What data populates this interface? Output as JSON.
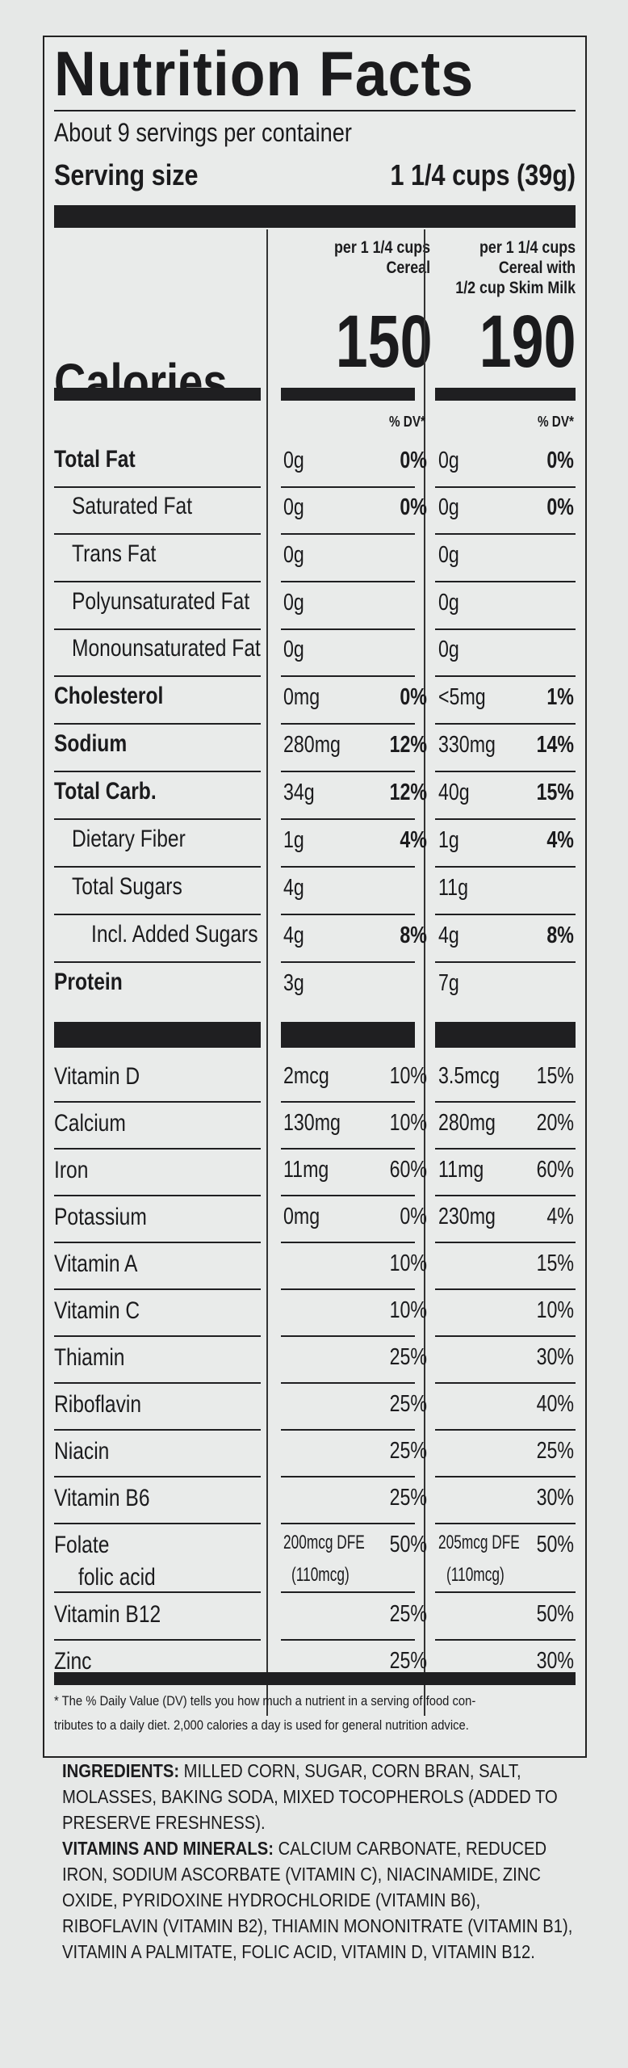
{
  "title": "Nutrition Facts",
  "servings": "About 9 servings per container",
  "serving_size_label": "Serving size",
  "serving_size_value": "1 1/4 cups (39g)",
  "col1_header": [
    "per 1 1/4 cups",
    "Cereal"
  ],
  "col2_header": [
    "per 1 1/4 cups",
    "Cereal with",
    "1/2 cup Skim Milk"
  ],
  "calories_label": "Calories",
  "calories_col1": "150",
  "calories_col2": "190",
  "dv_header": "% DV*",
  "nutrients": [
    {
      "name": "Total Fat",
      "bold": true,
      "a1": "0g",
      "p1": "0%",
      "a2": "0g",
      "p2": "0%",
      "pbold": true
    },
    {
      "name": "Saturated Fat",
      "indent": 1,
      "a1": "0g",
      "p1": "0%",
      "a2": "0g",
      "p2": "0%",
      "pbold": true
    },
    {
      "name": "Trans Fat",
      "indent": 1,
      "a1": "0g",
      "p1": "",
      "a2": "0g",
      "p2": ""
    },
    {
      "name": "Polyunsaturated Fat",
      "indent": 1,
      "a1": "0g",
      "p1": "",
      "a2": "0g",
      "p2": ""
    },
    {
      "name": "Monounsaturated Fat",
      "indent": 1,
      "a1": "0g",
      "p1": "",
      "a2": "0g",
      "p2": ""
    },
    {
      "name": "Cholesterol",
      "bold": true,
      "a1": "0mg",
      "p1": "0%",
      "a2": "<5mg",
      "p2": "1%",
      "pbold": true
    },
    {
      "name": "Sodium",
      "bold": true,
      "a1": "280mg",
      "p1": "12%",
      "a2": "330mg",
      "p2": "14%",
      "pbold": true
    },
    {
      "name": "Total Carb.",
      "bold": true,
      "a1": "34g",
      "p1": "12%",
      "a2": "40g",
      "p2": "15%",
      "pbold": true
    },
    {
      "name": "Dietary Fiber",
      "indent": 1,
      "a1": "1g",
      "p1": "4%",
      "a2": "1g",
      "p2": "4%",
      "pbold": true
    },
    {
      "name": "Total Sugars",
      "indent": 1,
      "a1": "4g",
      "p1": "",
      "a2": "11g",
      "p2": ""
    },
    {
      "name": "Incl. Added Sugars",
      "indent": 2,
      "a1": "4g",
      "p1": "8%",
      "a2": "4g",
      "p2": "8%",
      "pbold": true
    },
    {
      "name": "Protein",
      "bold": true,
      "a1": "3g",
      "p1": "",
      "a2": "7g",
      "p2": ""
    }
  ],
  "vitamins": [
    {
      "name": "Vitamin D",
      "a1": "2mcg",
      "p1": "10%",
      "a2": "3.5mcg",
      "p2": "15%"
    },
    {
      "name": "Calcium",
      "a1": "130mg",
      "p1": "10%",
      "a2": "280mg",
      "p2": "20%"
    },
    {
      "name": "Iron",
      "a1": "11mg",
      "p1": "60%",
      "a2": "11mg",
      "p2": "60%"
    },
    {
      "name": "Potassium",
      "a1": "0mg",
      "p1": "0%",
      "a2": "230mg",
      "p2": "4%"
    },
    {
      "name": "Vitamin A",
      "a1": "",
      "p1": "10%",
      "a2": "",
      "p2": "15%"
    },
    {
      "name": "Vitamin C",
      "a1": "",
      "p1": "10%",
      "a2": "",
      "p2": "10%"
    },
    {
      "name": "Thiamin",
      "a1": "",
      "p1": "25%",
      "a2": "",
      "p2": "30%"
    },
    {
      "name": "Riboflavin",
      "a1": "",
      "p1": "25%",
      "a2": "",
      "p2": "40%"
    },
    {
      "name": "Niacin",
      "a1": "",
      "p1": "25%",
      "a2": "",
      "p2": "25%"
    },
    {
      "name": "Vitamin B6",
      "a1": "",
      "p1": "25%",
      "a2": "",
      "p2": "30%"
    },
    {
      "name": "Folate",
      "sub": "folic acid",
      "a1": "200mcg DFE",
      "a1b": "(110mcg)",
      "p1": "50%",
      "a2": "205mcg DFE",
      "a2b": "(110mcg)",
      "p2": "50%"
    },
    {
      "name": "Vitamin B12",
      "a1": "",
      "p1": "25%",
      "a2": "",
      "p2": "50%"
    },
    {
      "name": "Zinc",
      "a1": "",
      "p1": "25%",
      "a2": "",
      "p2": "30%"
    }
  ],
  "footnote": [
    "* The % Daily Value (DV) tells you how much a nutrient in a serving of food con-",
    "tributes to a daily diet. 2,000 calories a day is used for general nutrition advice."
  ],
  "ingredients_label": "INGREDIENTS:",
  "ingredients_text": "MILLED CORN, SUGAR, CORN BRAN, SALT, MOLASSES, BAKING SODA, MIXED TOCOPHER­OLS (ADDED TO PRESERVE FRESHNESS).",
  "vitmin_label": "VITAMINS AND MINERALS:",
  "vitmin_text": "CALCIUM CARBONATE, REDUCED IRON, SODIUM ASCORBATE (VITAMIN C), NIACINAMIDE, ZINC OXIDE, PYRIDOXINE HYDROCHLO­RIDE (VITAMIN B6), RIBOFLAVIN (VITAMIN B2), THIAMIN MONONITRATE (VITAMIN B1), VITAMIN A PALMITATE, FOLIC ACID, VITAMIN D, VITAMIN B12."
}
